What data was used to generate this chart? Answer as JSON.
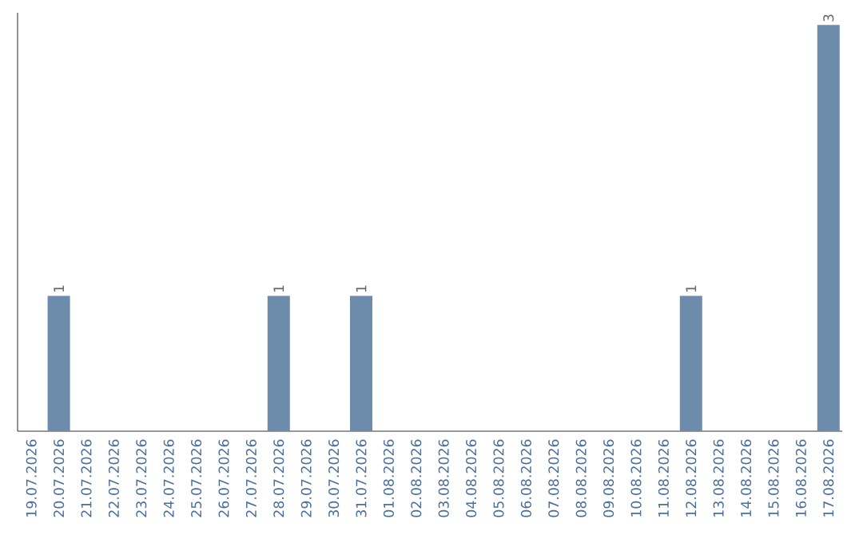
{
  "chart_data": {
    "type": "bar",
    "categories": [
      "19.07.2026",
      "20.07.2026",
      "21.07.2026",
      "22.07.2026",
      "23.07.2026",
      "24.07.2026",
      "25.07.2026",
      "26.07.2026",
      "27.07.2026",
      "28.07.2026",
      "29.07.2026",
      "30.07.2026",
      "31.07.2026",
      "01.08.2026",
      "02.08.2026",
      "03.08.2026",
      "04.08.2026",
      "05.08.2026",
      "06.08.2026",
      "07.08.2026",
      "08.08.2026",
      "09.08.2026",
      "10.08.2026",
      "11.08.2026",
      "12.08.2026",
      "13.08.2026",
      "14.08.2026",
      "15.08.2026",
      "16.08.2026",
      "17.08.2026"
    ],
    "values": [
      0,
      1,
      0,
      0,
      0,
      0,
      0,
      0,
      0,
      1,
      0,
      0,
      1,
      0,
      0,
      0,
      0,
      0,
      0,
      0,
      0,
      0,
      0,
      0,
      1,
      0,
      0,
      0,
      0,
      3
    ],
    "value_labels": [
      null,
      "1",
      null,
      null,
      null,
      null,
      null,
      null,
      null,
      "1",
      null,
      null,
      "1",
      null,
      null,
      null,
      null,
      null,
      null,
      null,
      null,
      null,
      null,
      null,
      "1",
      null,
      null,
      null,
      null,
      "3"
    ],
    "color": "#6d8cab"
  }
}
